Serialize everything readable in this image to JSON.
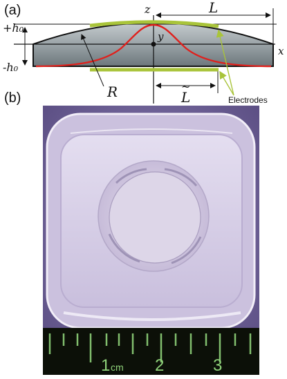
{
  "panels": [
    {
      "label": "(a)"
    },
    {
      "label": "(b)"
    }
  ],
  "diagram": {
    "axis_labels": {
      "z": "z",
      "y": "y",
      "x": "x"
    },
    "height_labels": {
      "top": "+h₀",
      "bottom": "-h₀"
    },
    "dimension_labels": {
      "L": "L",
      "L_tilde": "L",
      "R": "R"
    },
    "electrodes_label": "Electrodes",
    "colors": {
      "electrode": "#a9c43a",
      "profile_curve": "#e0201c",
      "lens_body": "#9aa3a7",
      "outline": "#111111"
    }
  },
  "photo": {
    "ruler_numbers": [
      "1",
      "2",
      "3"
    ],
    "ruler_unit": "cm",
    "colors": {
      "background": "#6b5e92",
      "dish": "#d6cde6",
      "ruler_tape": "#0c1008",
      "ruler_marks": "#8fd27a"
    }
  }
}
